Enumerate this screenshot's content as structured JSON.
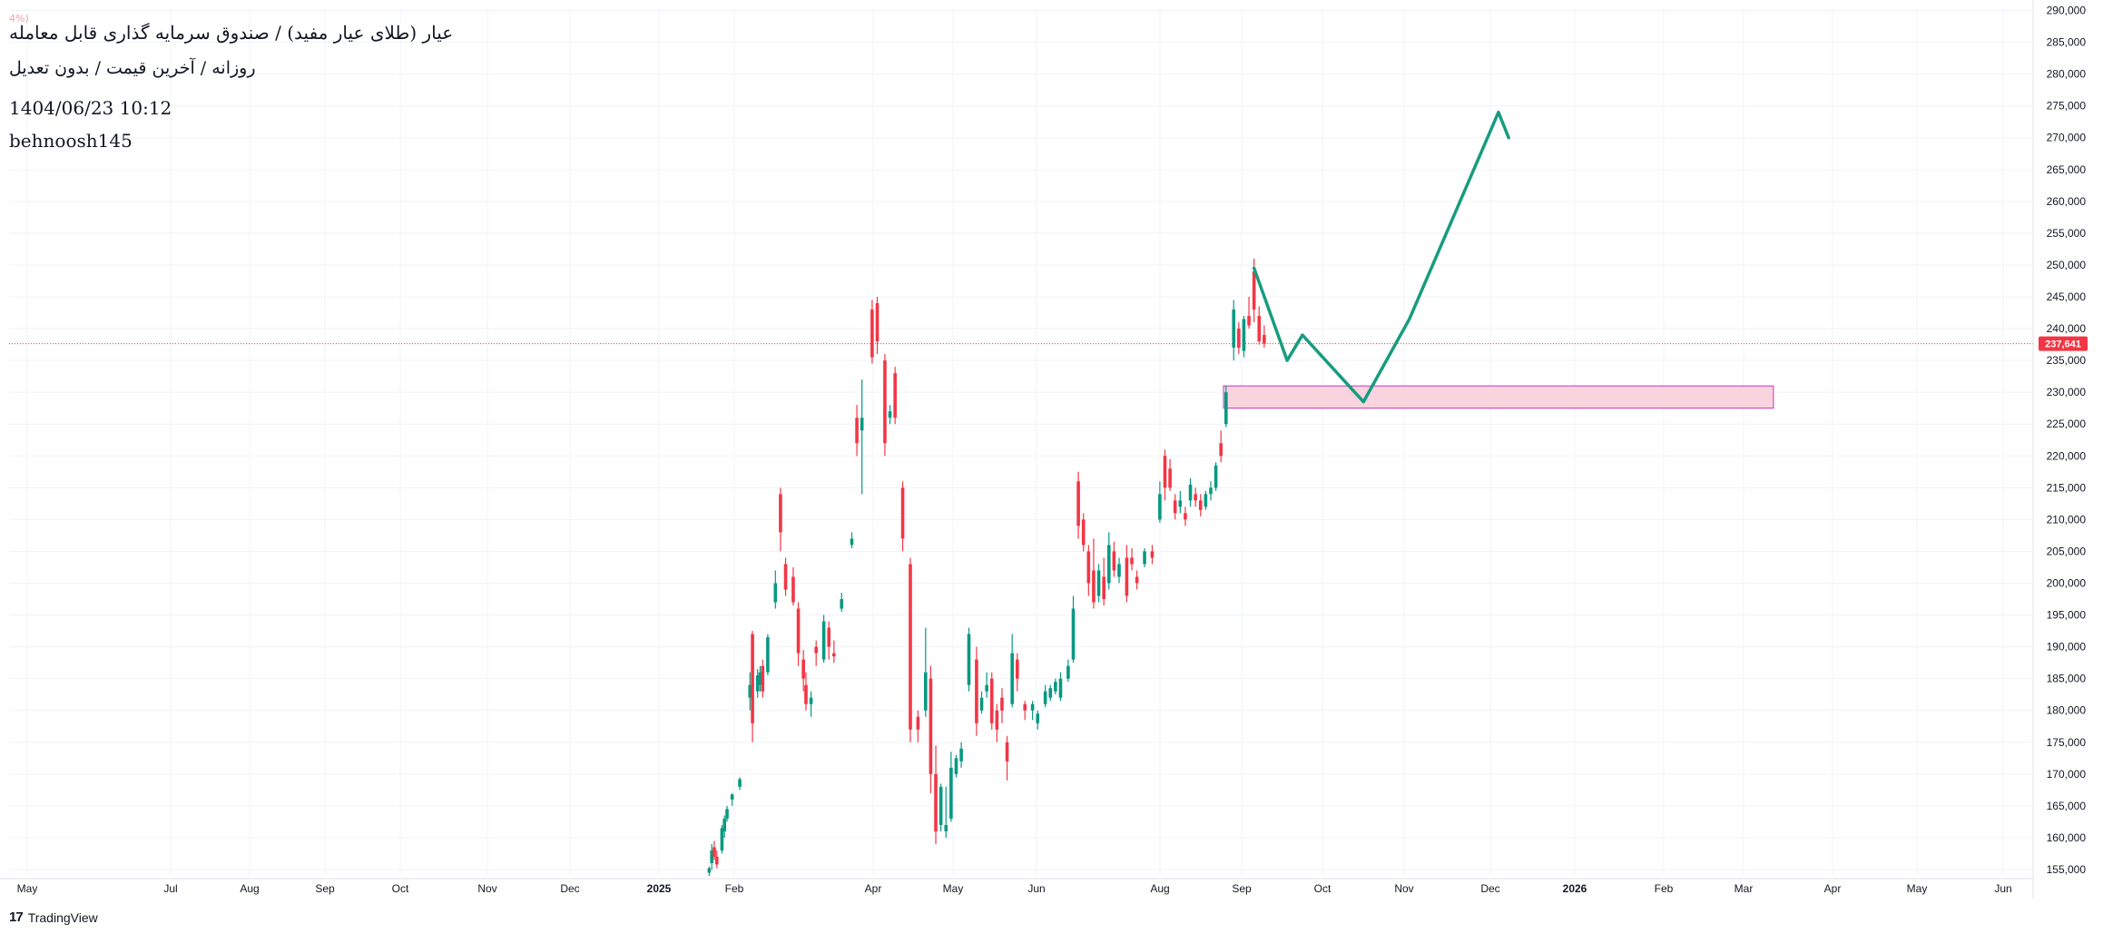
{
  "header": {
    "ohlc_strip": "4%)",
    "title": "عیار (طلای عیار مفید) / صندوق سرمایه گذاری قابل معامله",
    "subtitle": "روزانه / آخرین قیمت / بدون تعدیل",
    "datetime": "1404/06/23 10:12",
    "author": "behnoosh145"
  },
  "footer": {
    "logo_mark": "17",
    "logo_text": "TradingView"
  },
  "colors": {
    "up": "#089981",
    "down": "#f23645",
    "grid": "#f0f3fa",
    "price_line": "#f23645",
    "projection": "#179c7f",
    "zone_fill": "#f9d3de",
    "zone_stroke": "#c237b6"
  },
  "chart_data": {
    "type": "candlestick",
    "price_scale": {
      "ticks": [
        155000,
        160000,
        165000,
        170000,
        175000,
        180000,
        185000,
        190000,
        195000,
        200000,
        205000,
        210000,
        215000,
        220000,
        225000,
        230000,
        235000,
        240000,
        245000,
        250000,
        255000,
        260000,
        265000,
        270000,
        275000,
        280000,
        285000,
        290000
      ],
      "range": [
        154000,
        290500
      ]
    },
    "last_price": {
      "value": 237641,
      "label": "237,641"
    },
    "time_axis": {
      "labels": [
        "May",
        "Jul",
        "Aug",
        "Sep",
        "Oct",
        "Nov",
        "Dec",
        "2025",
        "Feb",
        "Apr",
        "May",
        "Jun",
        "Aug",
        "Sep",
        "Oct",
        "Nov",
        "Dec",
        "2026",
        "Feb",
        "Mar",
        "Apr",
        "May",
        "Jun"
      ],
      "start": "2024-04-20",
      "end": "2026-06-24"
    },
    "candles": [
      [
        "2025-01-20",
        154500,
        155500,
        154000,
        155200
      ],
      [
        "2025-01-21",
        156000,
        159000,
        155000,
        158000
      ],
      [
        "2025-01-22",
        158500,
        159500,
        156500,
        157000
      ],
      [
        "2025-01-23",
        157000,
        158000,
        155200,
        155800
      ],
      [
        "2025-01-25",
        158000,
        162000,
        157500,
        161500
      ],
      [
        "2025-01-26",
        161000,
        163500,
        160000,
        163000
      ],
      [
        "2025-01-27",
        163000,
        165000,
        162500,
        164500
      ],
      [
        "2025-01-29",
        166000,
        167000,
        165000,
        166800
      ],
      [
        "2025-02-01",
        168000,
        169500,
        167500,
        169200
      ],
      [
        "2025-02-05",
        182000,
        186000,
        180000,
        184000
      ],
      [
        "2025-02-06",
        192000,
        192500,
        175000,
        178000
      ],
      [
        "2025-02-08",
        183000,
        186500,
        182000,
        185500
      ],
      [
        "2025-02-09",
        184000,
        187000,
        183000,
        186000
      ],
      [
        "2025-02-10",
        187000,
        188000,
        182000,
        183000
      ],
      [
        "2025-02-12",
        186000,
        192000,
        185500,
        191500
      ],
      [
        "2025-02-15",
        197000,
        202000,
        196000,
        200000
      ],
      [
        "2025-02-17",
        214000,
        215000,
        205000,
        208000
      ],
      [
        "2025-02-19",
        203000,
        204000,
        198000,
        199000
      ],
      [
        "2025-02-22",
        201000,
        202500,
        196500,
        197000
      ],
      [
        "2025-02-24",
        196000,
        197000,
        187000,
        189000
      ],
      [
        "2025-02-26",
        188000,
        189500,
        183000,
        185000
      ],
      [
        "2025-02-27",
        184000,
        186000,
        180000,
        181000
      ],
      [
        "2025-03-01",
        181000,
        183000,
        179000,
        182000
      ],
      [
        "2025-03-03",
        190000,
        191000,
        187000,
        189000
      ],
      [
        "2025-03-06",
        188000,
        195000,
        187500,
        194000
      ],
      [
        "2025-03-08",
        193000,
        194000,
        188000,
        190000
      ],
      [
        "2025-03-10",
        189000,
        191000,
        187500,
        188500
      ],
      [
        "2025-03-13",
        196000,
        198500,
        195500,
        197500
      ],
      [
        "2025-03-17",
        206000,
        208000,
        205500,
        207000
      ],
      [
        "2025-03-19",
        226000,
        228000,
        220000,
        222000
      ],
      [
        "2025-03-21",
        224000,
        232000,
        214000,
        226000
      ],
      [
        "2025-03-25",
        243000,
        244500,
        234500,
        235500
      ],
      [
        "2025-03-27",
        244000,
        245000,
        236000,
        238000
      ],
      [
        "2025-03-30",
        235000,
        236000,
        220000,
        222000
      ],
      [
        "2025-04-01",
        226000,
        228000,
        225000,
        227000
      ],
      [
        "2025-04-03",
        233000,
        234000,
        225000,
        226000
      ],
      [
        "2025-04-06",
        215000,
        216000,
        205000,
        207000
      ],
      [
        "2025-04-09",
        203000,
        204000,
        175000,
        177000
      ],
      [
        "2025-04-12",
        179000,
        180000,
        175000,
        177000
      ],
      [
        "2025-04-15",
        180000,
        193000,
        179000,
        186000
      ],
      [
        "2025-04-17",
        185000,
        187000,
        167000,
        170000
      ],
      [
        "2025-04-19",
        170000,
        174500,
        159000,
        161000
      ],
      [
        "2025-04-21",
        162000,
        168500,
        161000,
        168000
      ],
      [
        "2025-04-23",
        161000,
        168000,
        160000,
        162000
      ],
      [
        "2025-04-25",
        163000,
        173500,
        162500,
        171000
      ],
      [
        "2025-04-27",
        170000,
        173000,
        169500,
        172500
      ],
      [
        "2025-04-29",
        172000,
        175000,
        171000,
        174000
      ],
      [
        "2025-05-02",
        184000,
        193000,
        183000,
        192000
      ],
      [
        "2025-05-05",
        188000,
        190000,
        176000,
        178000
      ],
      [
        "2025-05-07",
        180000,
        183000,
        179500,
        182000
      ],
      [
        "2025-05-09",
        183000,
        186000,
        182000,
        184000
      ],
      [
        "2025-05-11",
        185000,
        186000,
        177000,
        178000
      ],
      [
        "2025-05-13",
        180000,
        181000,
        175000,
        177000
      ],
      [
        "2025-05-15",
        182000,
        183500,
        178000,
        180000
      ],
      [
        "2025-05-17",
        175000,
        176000,
        169000,
        172000
      ],
      [
        "2025-05-19",
        181000,
        192000,
        180500,
        189000
      ],
      [
        "2025-05-21",
        188000,
        189000,
        183000,
        185000
      ],
      [
        "2025-05-24",
        181000,
        181500,
        178500,
        180000
      ],
      [
        "2025-05-27",
        180000,
        181500,
        178500,
        181000
      ],
      [
        "2025-05-29",
        178000,
        180000,
        177000,
        179500
      ],
      [
        "2025-06-01",
        181000,
        184000,
        180500,
        183000
      ],
      [
        "2025-06-03",
        182000,
        184000,
        181500,
        183500
      ],
      [
        "2025-06-05",
        183000,
        185000,
        182500,
        184500
      ],
      [
        "2025-06-07",
        182000,
        186000,
        181500,
        185000
      ],
      [
        "2025-06-10",
        185000,
        188000,
        184500,
        187000
      ],
      [
        "2025-06-12",
        188000,
        198000,
        187500,
        196000
      ],
      [
        "2025-06-14",
        216000,
        217500,
        207000,
        209000
      ],
      [
        "2025-06-16",
        210000,
        211000,
        205000,
        206000
      ],
      [
        "2025-06-18",
        205000,
        206000,
        198000,
        200000
      ],
      [
        "2025-06-20",
        202000,
        207000,
        196000,
        197000
      ],
      [
        "2025-06-22",
        198000,
        203000,
        197000,
        202000
      ],
      [
        "2025-06-24",
        201000,
        204000,
        196500,
        197500
      ],
      [
        "2025-06-26",
        200000,
        208000,
        199000,
        206000
      ],
      [
        "2025-06-28",
        205000,
        206500,
        201000,
        202000
      ],
      [
        "2025-06-30",
        201000,
        204000,
        200000,
        203000
      ],
      [
        "2025-07-03",
        204000,
        206000,
        197000,
        198000
      ],
      [
        "2025-07-05",
        204000,
        205500,
        202000,
        203000
      ],
      [
        "2025-07-07",
        201000,
        202000,
        199000,
        200000
      ],
      [
        "2025-07-10",
        203000,
        205500,
        202500,
        205000
      ],
      [
        "2025-07-13",
        205000,
        206000,
        203000,
        204000
      ],
      [
        "2025-07-16",
        210000,
        216000,
        209500,
        214000
      ],
      [
        "2025-07-18",
        220000,
        221000,
        213000,
        215000
      ],
      [
        "2025-07-20",
        218000,
        219500,
        214500,
        215000
      ],
      [
        "2025-07-22",
        213000,
        214000,
        210000,
        211000
      ],
      [
        "2025-07-24",
        212000,
        214500,
        211000,
        213000
      ],
      [
        "2025-07-26",
        211000,
        212000,
        209000,
        210000
      ],
      [
        "2025-07-28",
        213000,
        216500,
        212000,
        215500
      ],
      [
        "2025-07-30",
        214000,
        215000,
        212000,
        213000
      ],
      [
        "2025-08-01",
        213000,
        214000,
        210500,
        211500
      ],
      [
        "2025-08-03",
        212000,
        214500,
        211500,
        214000
      ],
      [
        "2025-08-05",
        214000,
        216000,
        213000,
        215000
      ],
      [
        "2025-08-07",
        215000,
        219000,
        214500,
        218500
      ],
      [
        "2025-08-09",
        222000,
        224000,
        219000,
        220000
      ],
      [
        "2025-08-11",
        225000,
        231000,
        224500,
        230000
      ],
      [
        "2025-08-14",
        237000,
        244500,
        235000,
        243000
      ],
      [
        "2025-08-16",
        240000,
        241000,
        236000,
        237000
      ],
      [
        "2025-08-18",
        236500,
        242000,
        235500,
        241500
      ],
      [
        "2025-08-20",
        242000,
        245000,
        240000,
        240500
      ],
      [
        "2025-08-22",
        249000,
        251000,
        241000,
        243000
      ],
      [
        "2025-08-24",
        242000,
        243500,
        237500,
        238000
      ],
      [
        "2025-08-26",
        239000,
        240500,
        237000,
        237641
      ]
    ],
    "drawings": {
      "support_zone": {
        "x_from": "2025-08-10",
        "x_to": "2026-03-14",
        "y_from": 227500,
        "y_to": 231000
      },
      "projection_path": [
        [
          "2025-08-22",
          249500
        ],
        [
          "2025-09-04",
          235000
        ],
        [
          "2025-09-10",
          239000
        ],
        [
          "2025-10-04",
          228500
        ],
        [
          "2025-10-22",
          241500
        ],
        [
          "2025-11-26",
          274000
        ],
        [
          "2025-11-30",
          270000
        ]
      ]
    }
  }
}
